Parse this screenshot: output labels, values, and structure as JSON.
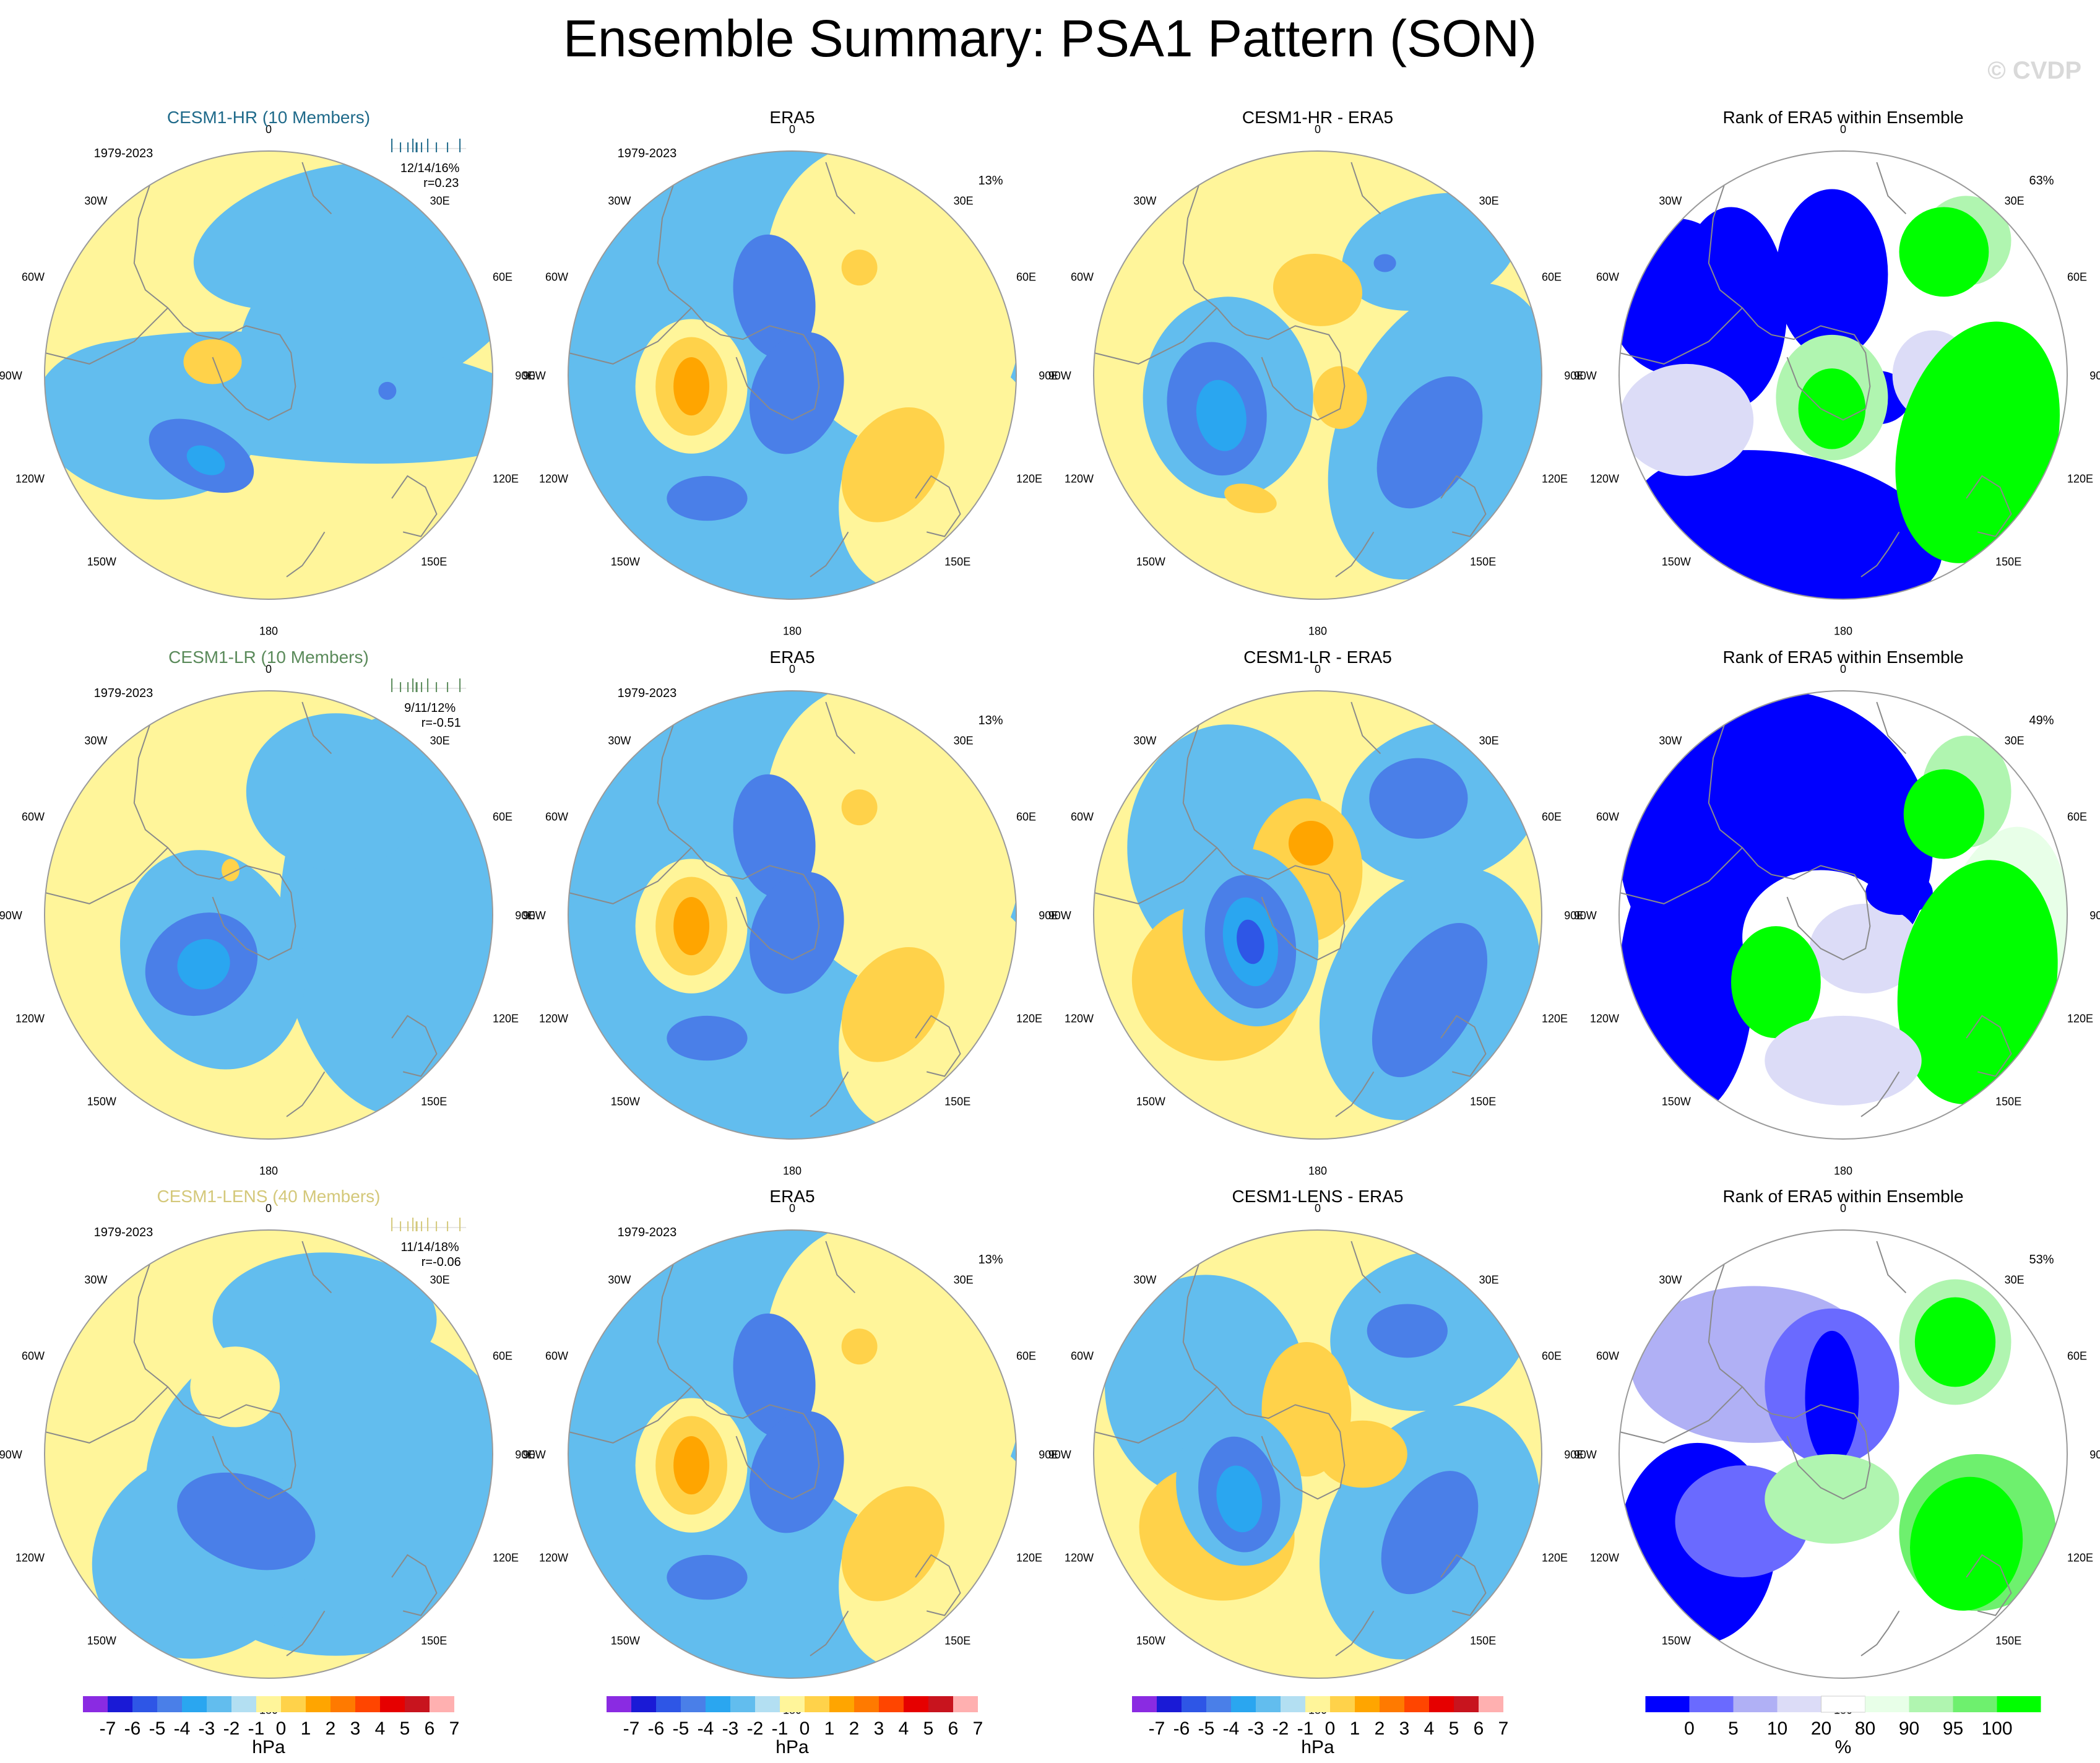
{
  "header": {
    "title": "Ensemble Summary: PSA1 Pattern (SON)",
    "watermark": "© CVDP"
  },
  "map_labels": {
    "top": "0",
    "bottom": "180",
    "left": [
      "30W",
      "60W",
      "90W",
      "120W",
      "150W"
    ],
    "right": [
      "30E",
      "60E",
      "90E",
      "120E",
      "150E"
    ]
  },
  "colors": {
    "hpa_scale": [
      "#8a2be2",
      "#1a1ad6",
      "#2e56e6",
      "#4a7fe8",
      "#2aa6f0",
      "#62bdee",
      "#b3dff2",
      "#fff59a",
      "#ffd24a",
      "#ffa500",
      "#ff7a00",
      "#ff4500",
      "#e60000",
      "#c8141e",
      "#ffb0b0"
    ],
    "rank_scale": [
      "#0000ff",
      "#6a6aff",
      "#b0b0f5",
      "#dcdcf7",
      "#ffffff",
      "#e8ffe8",
      "#b0f5b0",
      "#6ef06e",
      "#00ff00"
    ]
  },
  "chart_data": [
    {
      "row": 1,
      "col": 1,
      "type": "contour-map",
      "title": "CESM1-HR (10 Members)",
      "title_color": "#1f6a8a",
      "period": "1979-2023",
      "stats": "12/14/16%",
      "corr": "r=0.23",
      "pct": ""
    },
    {
      "row": 1,
      "col": 2,
      "type": "contour-map",
      "title": "ERA5",
      "title_color": "#000000",
      "period": "1979-2023",
      "pct": "13%"
    },
    {
      "row": 1,
      "col": 3,
      "type": "contour-map",
      "title": "CESM1-HR - ERA5",
      "title_color": "#000000",
      "period": "",
      "pct": ""
    },
    {
      "row": 1,
      "col": 4,
      "type": "rank-map",
      "title": "Rank of ERA5 within Ensemble",
      "title_color": "#000000",
      "period": "",
      "pct": "63%"
    },
    {
      "row": 2,
      "col": 1,
      "type": "contour-map",
      "title": "CESM1-LR (10 Members)",
      "title_color": "#5a8a5a",
      "period": "1979-2023",
      "stats": "9/11/12%",
      "corr": "r=-0.51",
      "pct": ""
    },
    {
      "row": 2,
      "col": 2,
      "type": "contour-map",
      "title": "ERA5",
      "title_color": "#000000",
      "period": "1979-2023",
      "pct": "13%"
    },
    {
      "row": 2,
      "col": 3,
      "type": "contour-map",
      "title": "CESM1-LR - ERA5",
      "title_color": "#000000",
      "period": "",
      "pct": ""
    },
    {
      "row": 2,
      "col": 4,
      "type": "rank-map",
      "title": "Rank of ERA5 within Ensemble",
      "title_color": "#000000",
      "period": "",
      "pct": "49%"
    },
    {
      "row": 3,
      "col": 1,
      "type": "contour-map",
      "title": "CESM1-LENS (40 Members)",
      "title_color": "#d4c87a",
      "period": "1979-2023",
      "stats": "11/14/18%",
      "corr": "r=-0.06",
      "pct": ""
    },
    {
      "row": 3,
      "col": 2,
      "type": "contour-map",
      "title": "ERA5",
      "title_color": "#000000",
      "period": "1979-2023",
      "pct": "13%"
    },
    {
      "row": 3,
      "col": 3,
      "type": "contour-map",
      "title": "CESM1-LENS - ERA5",
      "title_color": "#000000",
      "period": "",
      "pct": ""
    },
    {
      "row": 3,
      "col": 4,
      "type": "rank-map",
      "title": "Rank of ERA5 within Ensemble",
      "title_color": "#000000",
      "period": "",
      "pct": "53%"
    }
  ],
  "colorbars": [
    {
      "type": "hpa",
      "ticks": [
        "-7",
        "-6",
        "-5",
        "-4",
        "-3",
        "-2",
        "-1",
        "0",
        "1",
        "2",
        "3",
        "4",
        "5",
        "6",
        "7"
      ],
      "unit": "hPa"
    },
    {
      "type": "hpa",
      "ticks": [
        "-7",
        "-6",
        "-5",
        "-4",
        "-3",
        "-2",
        "-1",
        "0",
        "1",
        "2",
        "3",
        "4",
        "5",
        "6",
        "7"
      ],
      "unit": "hPa"
    },
    {
      "type": "hpa",
      "ticks": [
        "-7",
        "-6",
        "-5",
        "-4",
        "-3",
        "-2",
        "-1",
        "0",
        "1",
        "2",
        "3",
        "4",
        "5",
        "6",
        "7"
      ],
      "unit": "hPa"
    },
    {
      "type": "rank",
      "ticks": [
        "0",
        "5",
        "10",
        "20",
        "80",
        "90",
        "95",
        "100"
      ],
      "unit": "%"
    }
  ]
}
